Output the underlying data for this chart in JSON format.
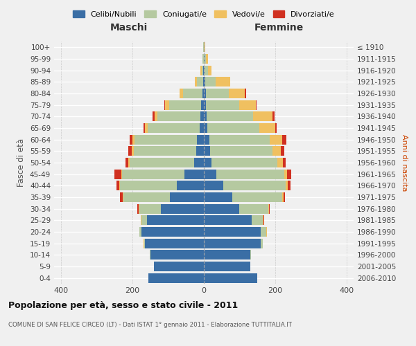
{
  "age_groups": [
    "0-4",
    "5-9",
    "10-14",
    "15-19",
    "20-24",
    "25-29",
    "30-34",
    "35-39",
    "40-44",
    "45-49",
    "50-54",
    "55-59",
    "60-64",
    "65-69",
    "70-74",
    "75-79",
    "80-84",
    "85-89",
    "90-94",
    "95-99",
    "100+"
  ],
  "birth_years": [
    "2006-2010",
    "2001-2005",
    "1996-2000",
    "1991-1995",
    "1986-1990",
    "1981-1985",
    "1976-1980",
    "1971-1975",
    "1966-1970",
    "1961-1965",
    "1956-1960",
    "1951-1955",
    "1946-1950",
    "1941-1945",
    "1936-1940",
    "1931-1935",
    "1926-1930",
    "1921-1925",
    "1916-1920",
    "1911-1915",
    "≤ 1910"
  ],
  "males": {
    "celibi": [
      155,
      140,
      150,
      165,
      175,
      160,
      120,
      95,
      75,
      55,
      28,
      22,
      20,
      12,
      10,
      8,
      4,
      2,
      1,
      0,
      0
    ],
    "coniugati": [
      0,
      0,
      1,
      3,
      5,
      15,
      60,
      130,
      160,
      175,
      180,
      175,
      175,
      145,
      120,
      90,
      55,
      18,
      5,
      3,
      1
    ],
    "vedovi": [
      0,
      0,
      0,
      1,
      1,
      2,
      2,
      2,
      2,
      2,
      3,
      5,
      5,
      8,
      8,
      10,
      10,
      5,
      3,
      1,
      0
    ],
    "divorziati": [
      0,
      0,
      0,
      0,
      0,
      0,
      5,
      8,
      8,
      18,
      8,
      10,
      8,
      4,
      5,
      3,
      0,
      0,
      0,
      0,
      0
    ]
  },
  "females": {
    "nubili": [
      150,
      130,
      130,
      160,
      160,
      135,
      100,
      80,
      55,
      35,
      22,
      18,
      15,
      10,
      8,
      5,
      5,
      3,
      2,
      1,
      0
    ],
    "coniugate": [
      0,
      1,
      2,
      5,
      15,
      30,
      80,
      140,
      175,
      190,
      185,
      175,
      170,
      145,
      130,
      95,
      65,
      30,
      10,
      5,
      2
    ],
    "vedove": [
      0,
      0,
      0,
      0,
      1,
      2,
      2,
      3,
      5,
      8,
      15,
      22,
      35,
      45,
      55,
      45,
      45,
      40,
      10,
      5,
      1
    ],
    "divorziate": [
      0,
      0,
      0,
      0,
      0,
      3,
      3,
      5,
      8,
      12,
      8,
      10,
      12,
      5,
      5,
      3,
      3,
      1,
      0,
      0,
      0
    ]
  },
  "colors": {
    "celibi": "#3a6ea5",
    "coniugati": "#b5c9a0",
    "vedovi": "#f0c060",
    "divorziati": "#d03020"
  },
  "title": "Popolazione per età, sesso e stato civile - 2011",
  "subtitle": "COMUNE DI SAN FELICE CIRCEO (LT) - Dati ISTAT 1° gennaio 2011 - Elaborazione TUTTITALIA.IT",
  "xlabel_maschi": "Maschi",
  "xlabel_femmine": "Femmine",
  "ylabel_left": "Fasce di età",
  "ylabel_right": "Anni di nascita",
  "xlim": 420,
  "legend_labels": [
    "Celibi/Nubili",
    "Coniugati/e",
    "Vedovi/e",
    "Divorziati/e"
  ],
  "background_color": "#f0f0f0"
}
